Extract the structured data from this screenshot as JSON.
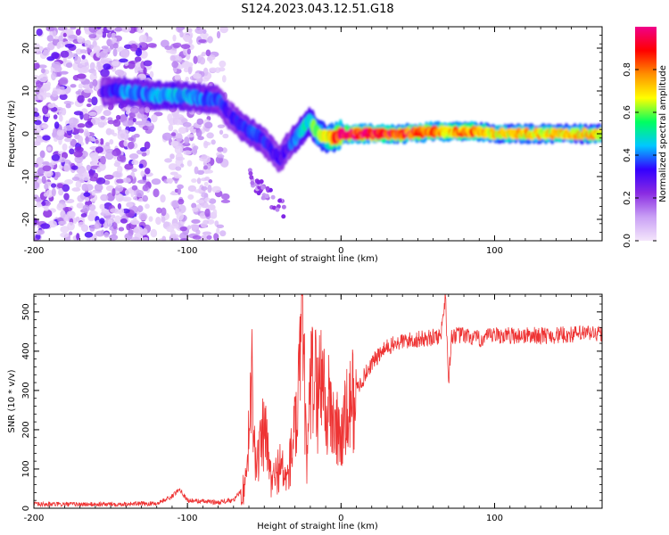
{
  "chart_data": [
    {
      "type": "heatmap",
      "title": "S124.2023.043.12.51.G18",
      "xlabel": "Height of straight line (km)",
      "ylabel": "Frequency (Hz)",
      "xlim": [
        -200,
        170
      ],
      "ylim": [
        -25,
        25
      ],
      "xticks": [
        -200,
        -100,
        0,
        100
      ],
      "xtick_labels": [
        "-200",
        "-100",
        "0",
        "100"
      ],
      "yticks": [
        -20,
        -10,
        0,
        10,
        20
      ],
      "ytick_labels": [
        "-20",
        "-10",
        "0",
        "10",
        "20"
      ],
      "colorbar": {
        "label": "Normalized spectral amplitude",
        "range": [
          0,
          1
        ],
        "ticks": [
          0.0,
          0.2,
          0.4,
          0.6,
          0.8
        ],
        "tick_labels": [
          "0.0",
          "0.2",
          "0.4",
          "0.6",
          "0.8"
        ],
        "colors": [
          "#f4e6fb",
          "#c9a0f5",
          "#8a2be2",
          "#3300ff",
          "#00c8ff",
          "#00ff60",
          "#ffff00",
          "#ff9000",
          "#ff0000",
          "#f0008a"
        ]
      },
      "ridge": {
        "x": [
          -155,
          -140,
          -125,
          -110,
          -95,
          -80,
          -72,
          -62,
          -52,
          -45,
          -40,
          -35,
          -30,
          -25,
          -20,
          -15,
          -10,
          -5,
          0,
          20,
          40,
          60,
          70,
          80,
          90,
          100,
          120,
          140,
          160,
          170
        ],
        "y": [
          10,
          10,
          9,
          9,
          8.5,
          8,
          4,
          1,
          -1,
          -4,
          -6,
          -3,
          -1,
          1,
          3,
          0,
          -1,
          -1,
          0,
          0,
          0,
          0.5,
          0.5,
          0.5,
          0.5,
          0,
          0,
          0,
          0,
          0
        ],
        "amplitude": [
          0.3,
          0.4,
          0.4,
          0.45,
          0.4,
          0.35,
          0.3,
          0.35,
          0.35,
          0.3,
          0.3,
          0.3,
          0.4,
          0.45,
          0.5,
          0.6,
          0.7,
          0.8,
          0.9,
          0.9,
          0.85,
          0.8,
          0.75,
          0.8,
          0.8,
          0.7,
          0.7,
          0.7,
          0.7,
          0.7
        ]
      },
      "noise_region": {
        "x": [
          -200,
          -75
        ],
        "y": [
          -25,
          25
        ]
      }
    },
    {
      "type": "line",
      "xlabel": "Height of straight line (km)",
      "ylabel": "SNR (10 * v/v)",
      "xlim": [
        -200,
        170
      ],
      "ylim": [
        0,
        545
      ],
      "xticks": [
        -200,
        -100,
        0,
        100
      ],
      "xtick_labels": [
        "-200",
        "-100",
        "0",
        "100"
      ],
      "yticks": [
        0,
        100,
        200,
        300,
        400,
        500
      ],
      "ytick_labels": [
        "0",
        "100",
        "200",
        "300",
        "400",
        "500"
      ],
      "color": "#ee3333",
      "series": [
        {
          "name": "SNR",
          "x": [
            -200,
            -160,
            -120,
            -110,
            -105,
            -100,
            -80,
            -70,
            -62,
            -58,
            -55,
            -50,
            -45,
            -40,
            -35,
            -32,
            -28,
            -25,
            -22,
            -20,
            -18,
            -15,
            -12,
            -10,
            -8,
            -5,
            -3,
            0,
            5,
            10,
            20,
            30,
            40,
            50,
            60,
            65,
            68,
            70,
            72,
            80,
            90,
            100,
            120,
            140,
            160,
            170
          ],
          "y": [
            10,
            10,
            12,
            30,
            50,
            20,
            15,
            20,
            60,
            340,
            100,
            200,
            60,
            110,
            70,
            150,
            250,
            440,
            100,
            300,
            350,
            280,
            380,
            230,
            260,
            220,
            200,
            180,
            250,
            300,
            370,
            410,
            425,
            430,
            435,
            440,
            545,
            320,
            440,
            440,
            430,
            440,
            440,
            440,
            445,
            445
          ]
        }
      ]
    }
  ]
}
